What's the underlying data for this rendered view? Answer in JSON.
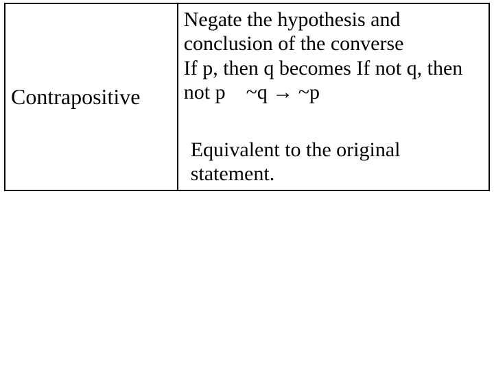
{
  "table": {
    "border_color": "#000000",
    "background_color": "#ffffff",
    "text_color": "#000000",
    "font_family": "Times New Roman",
    "left": {
      "label": "Contrapositive",
      "fontsize": 32
    },
    "right": {
      "fontsize": 30,
      "line1": "Negate the hypothesis and conclusion of the converse",
      "line2_a": "If p, then q becomes If not q, then not p",
      "line2_b": "~q → ~p",
      "line3": "Equivalent to the original statement."
    }
  }
}
